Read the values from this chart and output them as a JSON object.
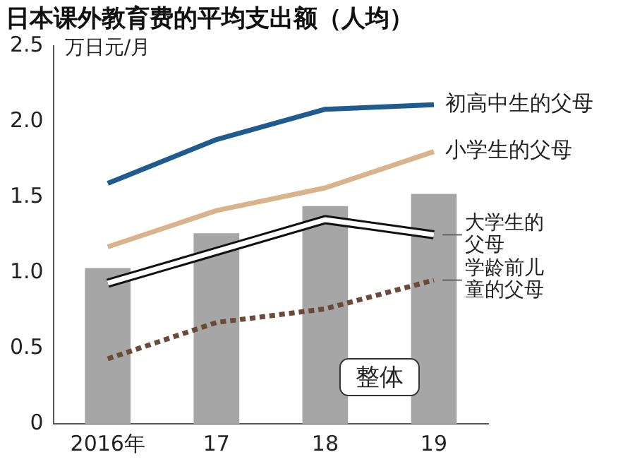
{
  "chart_data": {
    "type": "line",
    "title": "日本课外教育费的平均支出额（人均）",
    "ylabel": "万日元/月",
    "categories": [
      "2016年",
      "17",
      "18",
      "19"
    ],
    "series": [
      {
        "name": "整体",
        "type": "bar",
        "color": "#a6a6a6",
        "values": [
          1.03,
          1.26,
          1.44,
          1.52
        ]
      },
      {
        "name": "初高中生的父母",
        "color": "#1f5b8e",
        "values": [
          1.59,
          1.88,
          2.08,
          2.11
        ]
      },
      {
        "name": "小学生的父母",
        "color": "#d9b38c",
        "values": [
          1.17,
          1.41,
          1.56,
          1.8
        ]
      },
      {
        "name": "大学生的父母",
        "color": "#ffffff",
        "values": [
          0.93,
          1.14,
          1.35,
          1.25
        ]
      },
      {
        "name": "学龄前儿童的父母",
        "color": "#6b4a3a",
        "line_style": "dotted",
        "values": [
          0.43,
          0.67,
          0.76,
          0.95
        ]
      }
    ],
    "ylim": [
      0,
      2.5
    ],
    "yticks": [
      0,
      0.5,
      {
        "value": 1,
        "label": "1.0"
      },
      {
        "value": 1.5,
        "label": "1.5"
      },
      {
        "value": 2,
        "label": "2.0"
      },
      {
        "value": 2.5,
        "label": "2.5"
      }
    ],
    "grid": false,
    "legend": false,
    "marker": "none"
  }
}
